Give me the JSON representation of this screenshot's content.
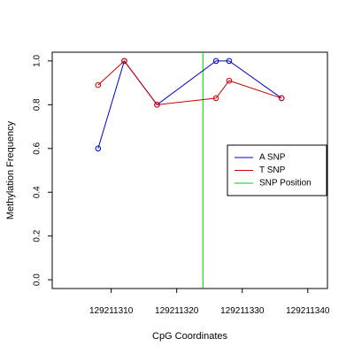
{
  "chart_data": {
    "type": "line",
    "title": "",
    "xlabel": "CpG Coordinates",
    "ylabel": "Methylation Frequency",
    "xlim": [
      129211301,
      129211343
    ],
    "ylim": [
      -0.04,
      1.04
    ],
    "x_ticks": [
      129211310,
      129211320,
      129211330,
      129211340
    ],
    "x_tick_labels": [
      "129211310",
      "129211320",
      "129211330",
      "129211340"
    ],
    "y_ticks": [
      0.0,
      0.2,
      0.4,
      0.6,
      0.8,
      1.0
    ],
    "y_tick_labels": [
      "0.0",
      "0.2",
      "0.4",
      "0.6",
      "0.8",
      "1.0"
    ],
    "grid": false,
    "legend_position": "right",
    "series": [
      {
        "name": "A SNP",
        "color": "#0000cc",
        "x": [
          129211308,
          129211312,
          129211317,
          129211326,
          129211328,
          129211336
        ],
        "values": [
          0.6,
          1.0,
          0.8,
          1.0,
          1.0,
          0.83
        ]
      },
      {
        "name": "T SNP",
        "color": "#cc0000",
        "x": [
          129211308,
          129211312,
          129211317,
          129211326,
          129211328,
          129211336
        ],
        "values": [
          0.89,
          1.0,
          0.8,
          0.83,
          0.91,
          0.83
        ]
      }
    ],
    "snp_position": {
      "name": "SNP Position",
      "color": "#00cc00",
      "x": 129211324
    }
  }
}
